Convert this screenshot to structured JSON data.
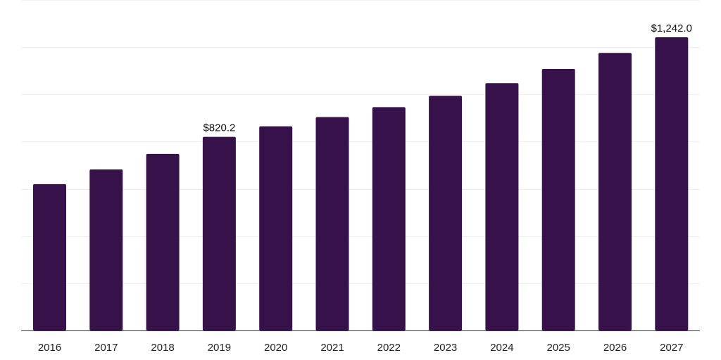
{
  "chart_data": {
    "type": "bar",
    "categories": [
      "2016",
      "2017",
      "2018",
      "2019",
      "2020",
      "2021",
      "2022",
      "2023",
      "2024",
      "2025",
      "2026",
      "2027"
    ],
    "series": [
      {
        "values": [
          620.0,
          682.0,
          748.0,
          820.2,
          865.0,
          904.0,
          946.0,
          994.0,
          1048.0,
          1108.0,
          1176.0,
          1242.0
        ]
      }
    ],
    "data_labels": [
      {
        "category": "2019",
        "text": "$820.2"
      },
      {
        "category": "2027",
        "text": "$1,242.0"
      }
    ],
    "ylim": [
      0,
      1400
    ],
    "grid": true,
    "legend": "none",
    "colors": {
      "bar": "#371149",
      "grid": "#eeeeee",
      "axis": "#333333"
    }
  }
}
